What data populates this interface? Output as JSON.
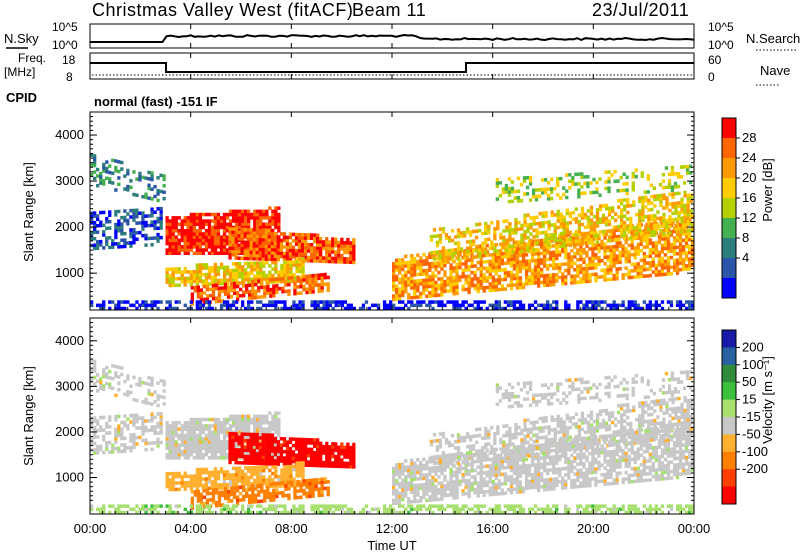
{
  "header": {
    "title": "Christmas Valley West (fitACF)",
    "beam": "Beam 11",
    "date": "23/Jul/2011",
    "cpid_label": "CPID",
    "cpid_value": "normal (fast) -151 IF"
  },
  "aux_panels": {
    "nsky_label": "N.Sky",
    "nsearch_label": "N.Search",
    "nsky_ticks": [
      "10^5",
      "10^0"
    ],
    "nsearch_ticks": [
      "10^5",
      "10^0"
    ],
    "freq_label_1": "Freq.",
    "freq_label_2": "[MHz]",
    "freq_ticks": [
      "18",
      "8"
    ],
    "nave_label": "Nave",
    "nave_ticks": [
      "60",
      "0"
    ]
  },
  "chart_data": [
    {
      "type": "heatmap",
      "panel": "power",
      "ylabel": "Slant Range [km]",
      "ylim": [
        200,
        4500
      ],
      "yticks": [
        "4000",
        "3000",
        "2000",
        "1000"
      ],
      "colorbar_label": "Power [dB]",
      "colorbar_ticks": [
        "28",
        "24",
        "20",
        "16",
        "12",
        "8",
        "4"
      ],
      "colorbar_colors": [
        "#ff0000",
        "#ff6600",
        "#ff9900",
        "#ffcc00",
        "#b4d000",
        "#44b050",
        "#2e7d7d",
        "#2a55a8",
        "#0000ff"
      ]
    },
    {
      "type": "heatmap",
      "panel": "velocity",
      "ylabel": "Slant Range [km]",
      "ylim": [
        200,
        4500
      ],
      "yticks": [
        "4000",
        "3000",
        "2000",
        "1000"
      ],
      "colorbar_label": "Velocity [m s⁻¹]",
      "colorbar_ticks": [
        "200",
        "100",
        "50",
        "15",
        "-15",
        "-50",
        "-100",
        "-200"
      ],
      "colorbar_colors": [
        "#1a1aa8",
        "#2860a0",
        "#2f8a3c",
        "#3cc03c",
        "#a8e070",
        "#c8c8c8",
        "#ffb030",
        "#ff8000",
        "#ff4000",
        "#ff0000"
      ]
    }
  ],
  "xaxis": {
    "label": "Time UT",
    "ticks": [
      "00:00",
      "04:00",
      "08:00",
      "12:00",
      "16:00",
      "20:00",
      "00:00"
    ]
  }
}
